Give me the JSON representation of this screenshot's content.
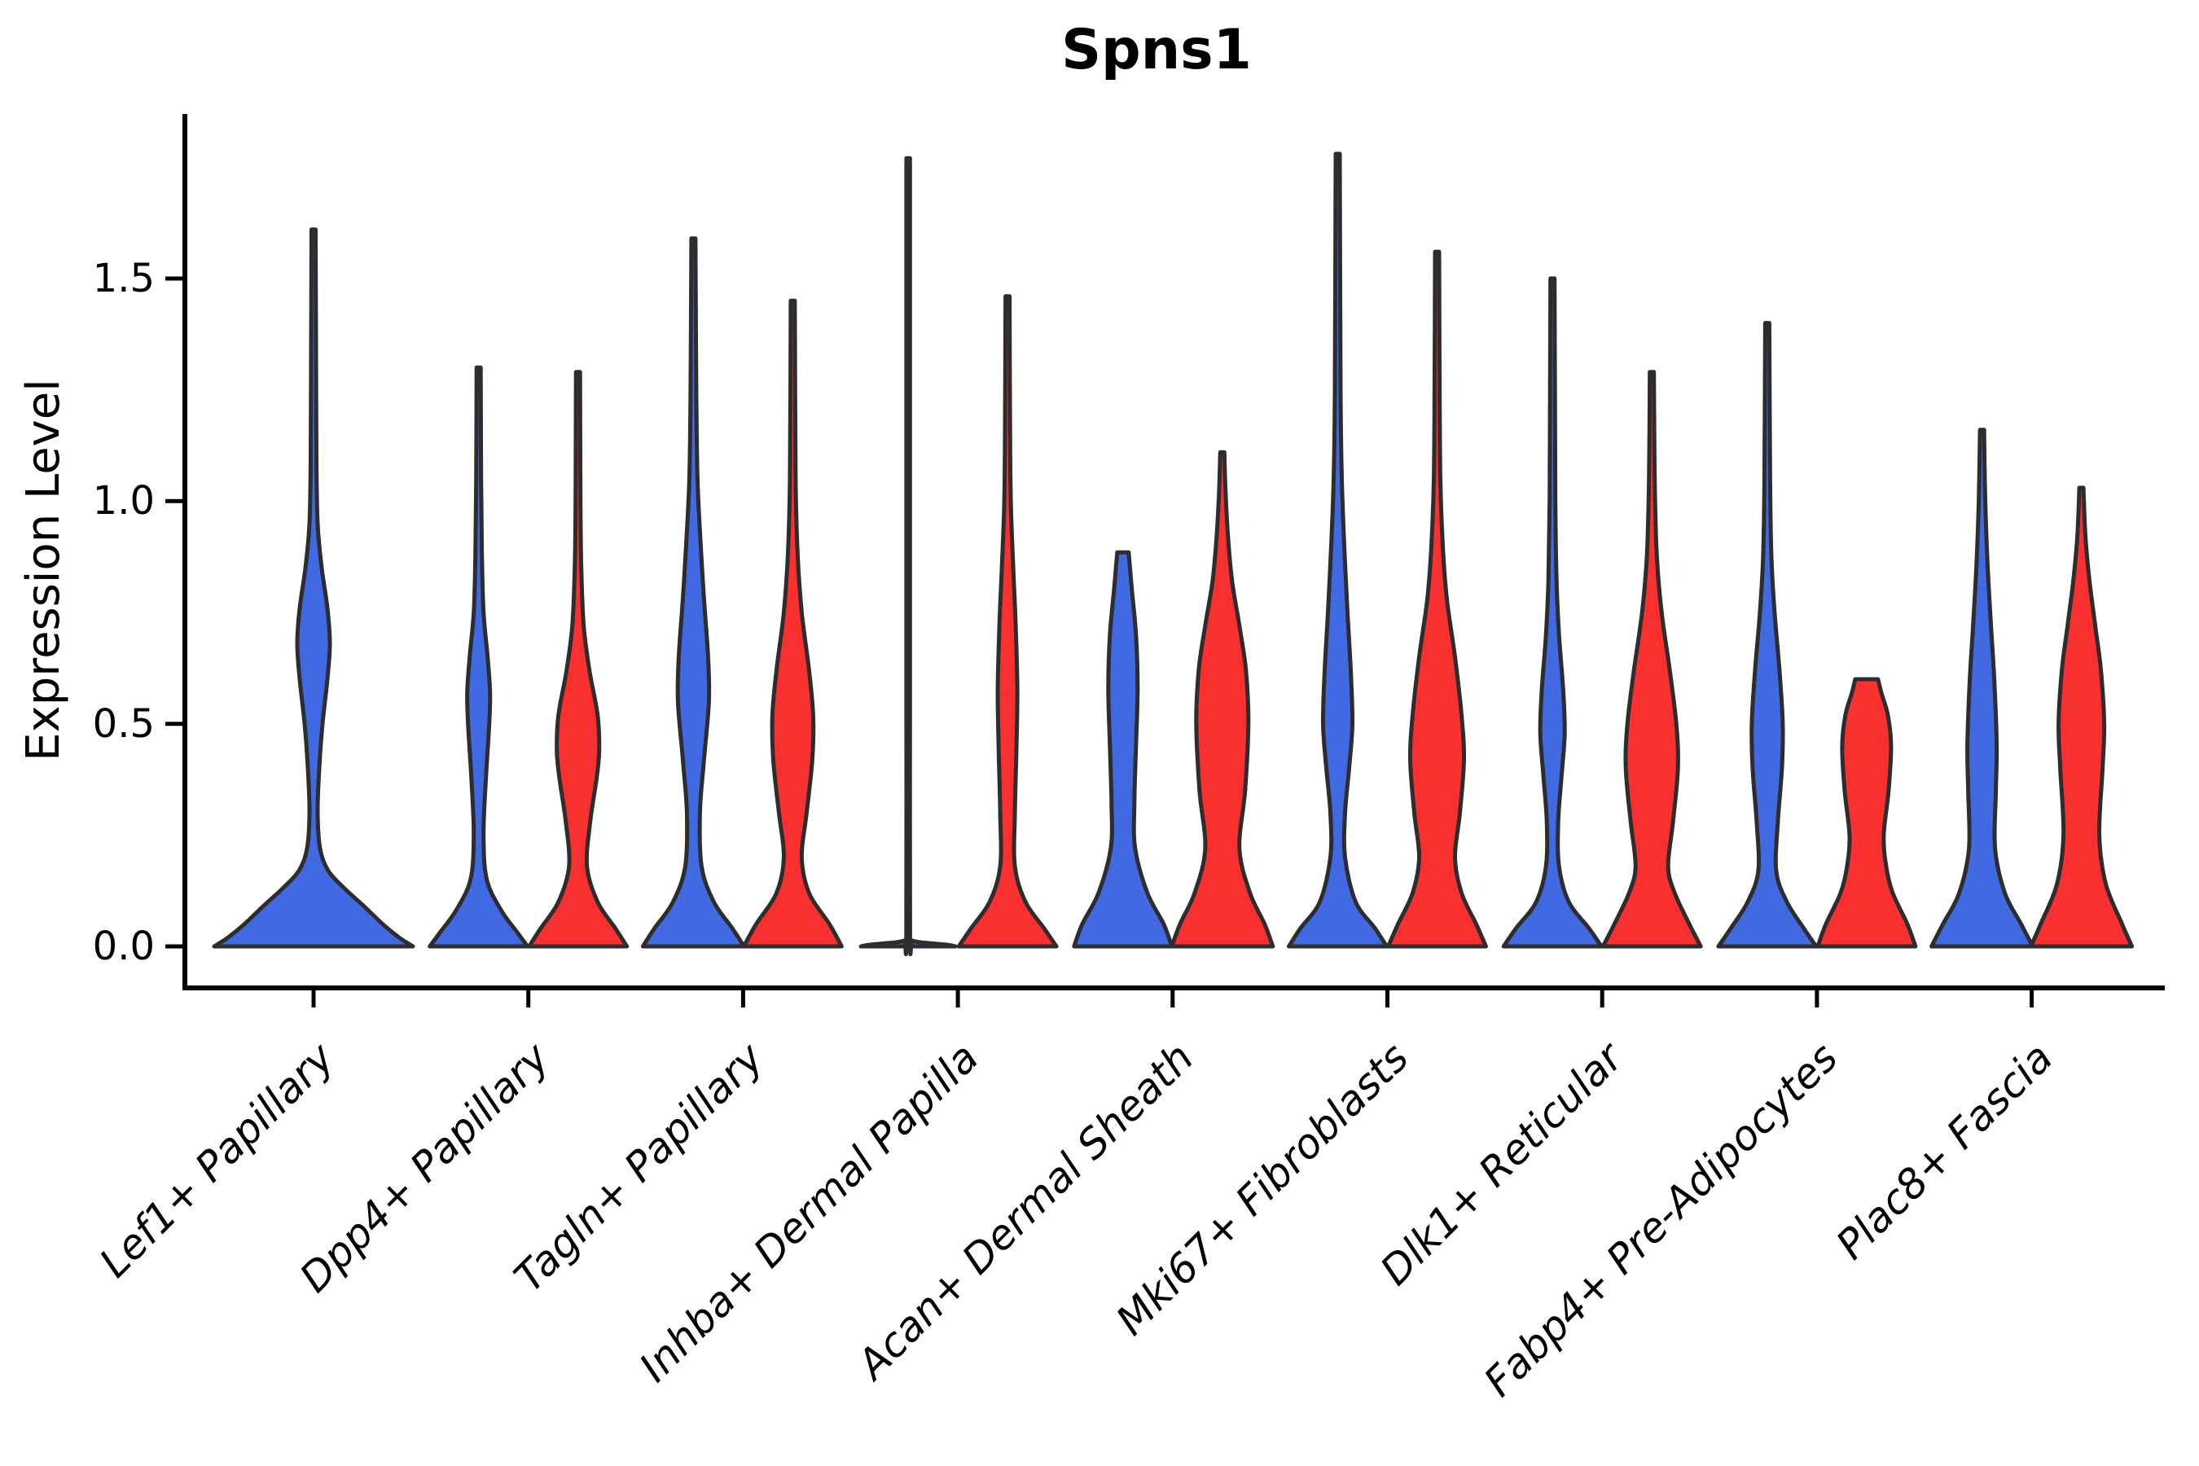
{
  "chart_data": {
    "type": "violin",
    "title": "Spns1",
    "ylabel": "Expression Level",
    "xlabel": "",
    "yticks": [
      "0.0",
      "0.5",
      "1.0",
      "1.5"
    ],
    "ytick_values": [
      0,
      0.5,
      1.0,
      1.5
    ],
    "ylim": [
      -0.09,
      1.87
    ],
    "grid": false,
    "legend": "none",
    "colors": {
      "blue": "#4169E1",
      "red": "#F93030",
      "outline": "#2D2D2D",
      "text": "#000000",
      "background": "#FFFFFF"
    },
    "categories": [
      "Lef1+ Papillary",
      "Dpp4+ Papillary",
      "Tagln+ Papillary",
      "Inhba+ Dermal Papilla",
      "Acan+ Dermal Sheath",
      "Mki67+ Fibroblasts",
      "Dlk1+ Reticular",
      "Fabp4+ Pre-Adipocytes",
      "Plac8+ Fascia"
    ],
    "violins": [
      {
        "cat": 0,
        "series": "blue",
        "side": "center",
        "top": 1.61,
        "flat_top": false,
        "profile": [
          [
            0,
            122
          ],
          [
            0.02,
            105
          ],
          [
            0.05,
            85
          ],
          [
            0.09,
            62
          ],
          [
            0.13,
            38
          ],
          [
            0.17,
            18
          ],
          [
            0.22,
            8
          ],
          [
            0.3,
            5
          ],
          [
            0.4,
            7
          ],
          [
            0.5,
            11
          ],
          [
            0.6,
            17
          ],
          [
            0.68,
            20
          ],
          [
            0.76,
            17
          ],
          [
            0.85,
            10
          ],
          [
            0.95,
            5
          ],
          [
            1.1,
            3.5
          ],
          [
            1.35,
            3
          ],
          [
            1.61,
            2.5
          ]
        ]
      },
      {
        "cat": 1,
        "series": "blue",
        "side": "left",
        "top": 1.3,
        "flat_top": false,
        "profile": [
          [
            0,
            60
          ],
          [
            0.03,
            48
          ],
          [
            0.08,
            28
          ],
          [
            0.15,
            10
          ],
          [
            0.25,
            6
          ],
          [
            0.38,
            9
          ],
          [
            0.5,
            13
          ],
          [
            0.57,
            14
          ],
          [
            0.65,
            11
          ],
          [
            0.75,
            6
          ],
          [
            0.88,
            4
          ],
          [
            1.05,
            3
          ],
          [
            1.3,
            2.5
          ]
        ]
      },
      {
        "cat": 1,
        "series": "red",
        "side": "right",
        "top": 1.29,
        "flat_top": false,
        "profile": [
          [
            0,
            60
          ],
          [
            0.04,
            46
          ],
          [
            0.1,
            24
          ],
          [
            0.18,
            11
          ],
          [
            0.28,
            15
          ],
          [
            0.38,
            23
          ],
          [
            0.44,
            26
          ],
          [
            0.52,
            24
          ],
          [
            0.62,
            14
          ],
          [
            0.72,
            7
          ],
          [
            0.85,
            4
          ],
          [
            1.0,
            3
          ],
          [
            1.29,
            2.5
          ]
        ]
      },
      {
        "cat": 2,
        "series": "blue",
        "side": "left",
        "top": 1.59,
        "flat_top": false,
        "profile": [
          [
            0,
            62
          ],
          [
            0.04,
            48
          ],
          [
            0.1,
            25
          ],
          [
            0.18,
            10
          ],
          [
            0.3,
            8
          ],
          [
            0.42,
            13
          ],
          [
            0.55,
            19
          ],
          [
            0.65,
            18
          ],
          [
            0.78,
            13
          ],
          [
            0.9,
            9
          ],
          [
            1.05,
            5
          ],
          [
            1.25,
            3.5
          ],
          [
            1.59,
            2.5
          ]
        ]
      },
      {
        "cat": 2,
        "series": "red",
        "side": "right",
        "top": 1.45,
        "flat_top": false,
        "profile": [
          [
            0,
            60
          ],
          [
            0.05,
            45
          ],
          [
            0.12,
            20
          ],
          [
            0.2,
            11
          ],
          [
            0.3,
            17
          ],
          [
            0.42,
            24
          ],
          [
            0.52,
            25
          ],
          [
            0.62,
            20
          ],
          [
            0.75,
            11
          ],
          [
            0.88,
            6
          ],
          [
            1.05,
            3.5
          ],
          [
            1.45,
            2.5
          ]
        ]
      },
      {
        "cat": 3,
        "series": "blue",
        "side": "left",
        "top": 1.77,
        "flat_top": false,
        "profile": [
          [
            0,
            58
          ],
          [
            0.003,
            50
          ],
          [
            0.006,
            34
          ],
          [
            0.009,
            16
          ],
          [
            0.013,
            5
          ],
          [
            0.02,
            2.3
          ],
          [
            0.5,
            2.2
          ],
          [
            1.0,
            2.2
          ],
          [
            1.77,
            2.2
          ]
        ]
      },
      {
        "cat": 3,
        "series": "red",
        "side": "right",
        "top": 1.46,
        "flat_top": false,
        "profile": [
          [
            0,
            60
          ],
          [
            0.04,
            45
          ],
          [
            0.1,
            22
          ],
          [
            0.18,
            9
          ],
          [
            0.3,
            9
          ],
          [
            0.45,
            11
          ],
          [
            0.58,
            12
          ],
          [
            0.72,
            10
          ],
          [
            0.85,
            7
          ],
          [
            1.0,
            4
          ],
          [
            1.2,
            3
          ],
          [
            1.46,
            2.5
          ]
        ]
      },
      {
        "cat": 4,
        "series": "blue",
        "side": "left",
        "top": 0.885,
        "flat_top": true,
        "profile": [
          [
            0,
            60
          ],
          [
            0.05,
            50
          ],
          [
            0.12,
            30
          ],
          [
            0.22,
            15
          ],
          [
            0.32,
            14
          ],
          [
            0.45,
            16
          ],
          [
            0.58,
            18
          ],
          [
            0.7,
            16
          ],
          [
            0.8,
            11
          ],
          [
            0.885,
            7
          ]
        ]
      },
      {
        "cat": 4,
        "series": "red",
        "side": "right",
        "top": 1.11,
        "flat_top": false,
        "profile": [
          [
            0,
            62
          ],
          [
            0.05,
            52
          ],
          [
            0.12,
            34
          ],
          [
            0.22,
            21
          ],
          [
            0.35,
            28
          ],
          [
            0.5,
            32
          ],
          [
            0.62,
            29
          ],
          [
            0.72,
            21
          ],
          [
            0.82,
            12
          ],
          [
            0.92,
            7
          ],
          [
            1.02,
            4
          ],
          [
            1.11,
            2.5
          ]
        ]
      },
      {
        "cat": 5,
        "series": "blue",
        "side": "left",
        "top": 1.78,
        "flat_top": false,
        "profile": [
          [
            0,
            60
          ],
          [
            0.04,
            46
          ],
          [
            0.1,
            22
          ],
          [
            0.2,
            9
          ],
          [
            0.3,
            9
          ],
          [
            0.4,
            14
          ],
          [
            0.5,
            18
          ],
          [
            0.62,
            16
          ],
          [
            0.75,
            12
          ],
          [
            0.9,
            8
          ],
          [
            1.05,
            5
          ],
          [
            1.25,
            3.5
          ],
          [
            1.78,
            2.5
          ]
        ]
      },
      {
        "cat": 5,
        "series": "red",
        "side": "right",
        "top": 1.56,
        "flat_top": false,
        "profile": [
          [
            0,
            60
          ],
          [
            0.05,
            48
          ],
          [
            0.12,
            30
          ],
          [
            0.2,
            22
          ],
          [
            0.3,
            28
          ],
          [
            0.42,
            33
          ],
          [
            0.52,
            30
          ],
          [
            0.65,
            22
          ],
          [
            0.78,
            12
          ],
          [
            0.9,
            7
          ],
          [
            1.05,
            4
          ],
          [
            1.3,
            3
          ],
          [
            1.56,
            2.5
          ]
        ]
      },
      {
        "cat": 6,
        "series": "blue",
        "side": "left",
        "top": 1.5,
        "flat_top": false,
        "profile": [
          [
            0,
            60
          ],
          [
            0.04,
            45
          ],
          [
            0.1,
            20
          ],
          [
            0.18,
            8
          ],
          [
            0.28,
            7
          ],
          [
            0.38,
            11
          ],
          [
            0.48,
            15
          ],
          [
            0.58,
            13
          ],
          [
            0.7,
            8
          ],
          [
            0.82,
            5
          ],
          [
            1.0,
            3.5
          ],
          [
            1.25,
            3
          ],
          [
            1.5,
            2.5
          ]
        ]
      },
      {
        "cat": 6,
        "series": "red",
        "side": "right",
        "top": 1.29,
        "flat_top": false,
        "profile": [
          [
            0,
            60
          ],
          [
            0.05,
            46
          ],
          [
            0.12,
            28
          ],
          [
            0.18,
            20
          ],
          [
            0.28,
            26
          ],
          [
            0.4,
            32
          ],
          [
            0.5,
            30
          ],
          [
            0.62,
            22
          ],
          [
            0.75,
            12
          ],
          [
            0.88,
            6
          ],
          [
            1.05,
            3.5
          ],
          [
            1.29,
            2.5
          ]
        ]
      },
      {
        "cat": 7,
        "series": "blue",
        "side": "left",
        "top": 1.4,
        "flat_top": false,
        "profile": [
          [
            0,
            60
          ],
          [
            0.04,
            45
          ],
          [
            0.1,
            24
          ],
          [
            0.17,
            11
          ],
          [
            0.28,
            13
          ],
          [
            0.4,
            18
          ],
          [
            0.5,
            19
          ],
          [
            0.62,
            15
          ],
          [
            0.75,
            9
          ],
          [
            0.88,
            5
          ],
          [
            1.05,
            3.5
          ],
          [
            1.4,
            2.5
          ]
        ]
      },
      {
        "cat": 7,
        "series": "red",
        "side": "right",
        "top": 0.6,
        "flat_top": true,
        "profile": [
          [
            0,
            60
          ],
          [
            0.05,
            50
          ],
          [
            0.12,
            32
          ],
          [
            0.18,
            24
          ],
          [
            0.25,
            21
          ],
          [
            0.35,
            27
          ],
          [
            0.45,
            30
          ],
          [
            0.52,
            26
          ],
          [
            0.57,
            18
          ],
          [
            0.6,
            14
          ]
        ]
      },
      {
        "cat": 8,
        "series": "blue",
        "side": "left",
        "top": 1.16,
        "flat_top": false,
        "profile": [
          [
            0,
            62
          ],
          [
            0.05,
            48
          ],
          [
            0.12,
            28
          ],
          [
            0.22,
            16
          ],
          [
            0.35,
            17
          ],
          [
            0.45,
            18
          ],
          [
            0.6,
            15
          ],
          [
            0.72,
            11
          ],
          [
            0.85,
            7
          ],
          [
            1.0,
            4
          ],
          [
            1.16,
            2.5
          ]
        ]
      },
      {
        "cat": 8,
        "series": "red",
        "side": "right",
        "top": 1.03,
        "flat_top": false,
        "profile": [
          [
            0,
            62
          ],
          [
            0.05,
            50
          ],
          [
            0.14,
            30
          ],
          [
            0.25,
            22
          ],
          [
            0.4,
            26
          ],
          [
            0.5,
            28
          ],
          [
            0.62,
            24
          ],
          [
            0.72,
            17
          ],
          [
            0.82,
            10
          ],
          [
            0.92,
            5
          ],
          [
            1.03,
            2.5
          ]
        ]
      }
    ]
  }
}
